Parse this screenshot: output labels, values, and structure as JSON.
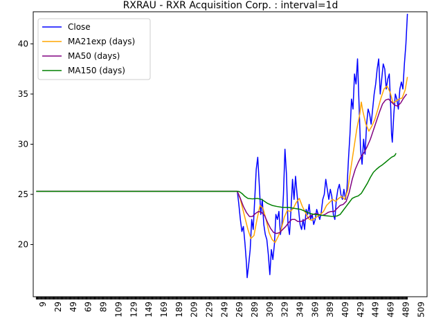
{
  "chart_data": {
    "type": "line",
    "title": "RXRAU - RXR Acquisition Corp. : interval=1d",
    "xlabel": "",
    "ylabel": "",
    "xlim": [
      -4,
      517
    ],
    "ylim": [
      14.8,
      43.2
    ],
    "legend_position": "top-left",
    "grid": false,
    "x_ticks": [
      9,
      29,
      49,
      69,
      89,
      109,
      129,
      149,
      169,
      189,
      209,
      229,
      249,
      269,
      289,
      309,
      329,
      349,
      369,
      389,
      409,
      429,
      449,
      469,
      489,
      509
    ],
    "y_ticks": [
      20,
      25,
      30,
      35,
      40
    ],
    "series": [
      {
        "name": "Close",
        "color": "#0000ff",
        "points": [
          [
            0,
            25.3
          ],
          [
            266,
            25.3
          ],
          [
            268,
            24.0
          ],
          [
            270,
            22.5
          ],
          [
            272,
            21.3
          ],
          [
            274,
            21.8
          ],
          [
            276,
            20.2
          ],
          [
            278,
            18.2
          ],
          [
            279,
            16.7
          ],
          [
            281,
            18.0
          ],
          [
            283,
            19.5
          ],
          [
            285,
            22.5
          ],
          [
            287,
            21.5
          ],
          [
            289,
            24.5
          ],
          [
            291,
            27.5
          ],
          [
            293,
            28.7
          ],
          [
            295,
            26.0
          ],
          [
            297,
            23.0
          ],
          [
            299,
            24.5
          ],
          [
            301,
            22.0
          ],
          [
            303,
            21.0
          ],
          [
            305,
            20.5
          ],
          [
            307,
            19.0
          ],
          [
            309,
            17.0
          ],
          [
            311,
            19.5
          ],
          [
            313,
            18.5
          ],
          [
            315,
            20.0
          ],
          [
            317,
            23.0
          ],
          [
            319,
            22.5
          ],
          [
            321,
            23.3
          ],
          [
            323,
            21.0
          ],
          [
            325,
            22.0
          ],
          [
            327,
            25.0
          ],
          [
            329,
            29.5
          ],
          [
            331,
            27.0
          ],
          [
            333,
            22.0
          ],
          [
            335,
            21.0
          ],
          [
            337,
            23.5
          ],
          [
            339,
            26.5
          ],
          [
            341,
            24.5
          ],
          [
            343,
            26.8
          ],
          [
            345,
            25.0
          ],
          [
            347,
            23.5
          ],
          [
            349,
            22.0
          ],
          [
            351,
            21.5
          ],
          [
            353,
            22.5
          ],
          [
            355,
            21.5
          ],
          [
            357,
            23.5
          ],
          [
            359,
            23.0
          ],
          [
            361,
            24.0
          ],
          [
            363,
            22.5
          ],
          [
            365,
            23.0
          ],
          [
            367,
            22.0
          ],
          [
            369,
            22.5
          ],
          [
            371,
            23.5
          ],
          [
            373,
            23.0
          ],
          [
            375,
            22.5
          ],
          [
            377,
            23.2
          ],
          [
            379,
            24.5
          ],
          [
            381,
            25.0
          ],
          [
            383,
            26.5
          ],
          [
            385,
            25.5
          ],
          [
            387,
            24.5
          ],
          [
            389,
            25.5
          ],
          [
            391,
            24.8
          ],
          [
            393,
            23.0
          ],
          [
            395,
            22.5
          ],
          [
            397,
            24.5
          ],
          [
            399,
            25.5
          ],
          [
            401,
            26.0
          ],
          [
            403,
            25.0
          ],
          [
            405,
            24.5
          ],
          [
            407,
            25.5
          ],
          [
            409,
            24.5
          ],
          [
            411,
            25.5
          ],
          [
            413,
            28.5
          ],
          [
            415,
            31.0
          ],
          [
            417,
            34.5
          ],
          [
            419,
            33.5
          ],
          [
            421,
            37.0
          ],
          [
            423,
            36.0
          ],
          [
            425,
            38.5
          ],
          [
            427,
            34.0
          ],
          [
            429,
            29.5
          ],
          [
            431,
            28.0
          ],
          [
            433,
            30.5
          ],
          [
            435,
            29.0
          ],
          [
            437,
            32.0
          ],
          [
            439,
            33.5
          ],
          [
            441,
            33.0
          ],
          [
            443,
            32.0
          ],
          [
            445,
            33.5
          ],
          [
            447,
            35.0
          ],
          [
            449,
            36.0
          ],
          [
            451,
            37.5
          ],
          [
            453,
            38.5
          ],
          [
            455,
            35.0
          ],
          [
            457,
            36.5
          ],
          [
            459,
            38.0
          ],
          [
            461,
            37.5
          ],
          [
            463,
            35.5
          ],
          [
            465,
            36.5
          ],
          [
            467,
            37.0
          ],
          [
            469,
            33.5
          ],
          [
            470,
            31.0
          ],
          [
            471,
            30.2
          ],
          [
            473,
            33.0
          ],
          [
            475,
            35.0
          ],
          [
            477,
            34.5
          ],
          [
            479,
            33.5
          ],
          [
            481,
            35.5
          ],
          [
            483,
            36.2
          ],
          [
            485,
            35.5
          ],
          [
            487,
            38.0
          ],
          [
            489,
            40.0
          ],
          [
            491,
            43.0
          ]
        ]
      },
      {
        "name": "MA21exp (days)",
        "color": "#ffa500",
        "points": [
          [
            0,
            25.3
          ],
          [
            266,
            25.3
          ],
          [
            270,
            24.5
          ],
          [
            275,
            23.0
          ],
          [
            280,
            21.5
          ],
          [
            284,
            20.6
          ],
          [
            288,
            20.9
          ],
          [
            292,
            22.5
          ],
          [
            296,
            23.9
          ],
          [
            300,
            23.6
          ],
          [
            304,
            22.5
          ],
          [
            308,
            21.2
          ],
          [
            312,
            20.5
          ],
          [
            316,
            20.2
          ],
          [
            320,
            20.8
          ],
          [
            324,
            21.5
          ],
          [
            328,
            22.7
          ],
          [
            332,
            23.4
          ],
          [
            336,
            23.3
          ],
          [
            340,
            23.6
          ],
          [
            344,
            24.2
          ],
          [
            348,
            24.6
          ],
          [
            352,
            23.8
          ],
          [
            356,
            23.2
          ],
          [
            360,
            22.6
          ],
          [
            364,
            22.4
          ],
          [
            368,
            22.6
          ],
          [
            372,
            22.8
          ],
          [
            376,
            23.0
          ],
          [
            380,
            23.3
          ],
          [
            384,
            23.9
          ],
          [
            388,
            24.2
          ],
          [
            392,
            24.5
          ],
          [
            396,
            24.3
          ],
          [
            400,
            24.6
          ],
          [
            404,
            24.8
          ],
          [
            408,
            24.5
          ],
          [
            412,
            25.4
          ],
          [
            416,
            27.5
          ],
          [
            420,
            29.5
          ],
          [
            424,
            31.5
          ],
          [
            428,
            33.0
          ],
          [
            430,
            34.2
          ],
          [
            432,
            33.3
          ],
          [
            436,
            32.0
          ],
          [
            440,
            31.3
          ],
          [
            444,
            31.8
          ],
          [
            448,
            32.5
          ],
          [
            452,
            33.5
          ],
          [
            456,
            34.6
          ],
          [
            460,
            35.5
          ],
          [
            464,
            35.8
          ],
          [
            468,
            35.2
          ],
          [
            472,
            34.1
          ],
          [
            476,
            34.3
          ],
          [
            480,
            34.5
          ],
          [
            484,
            34.6
          ],
          [
            488,
            35.4
          ],
          [
            491,
            36.7
          ]
        ]
      },
      {
        "name": "MA50 (days)",
        "color": "#800080",
        "points": [
          [
            0,
            25.3
          ],
          [
            266,
            25.3
          ],
          [
            270,
            24.6
          ],
          [
            274,
            23.8
          ],
          [
            278,
            23.2
          ],
          [
            282,
            22.8
          ],
          [
            286,
            22.8
          ],
          [
            290,
            23.1
          ],
          [
            294,
            23.3
          ],
          [
            298,
            23.2
          ],
          [
            302,
            22.9
          ],
          [
            306,
            22.2
          ],
          [
            310,
            21.6
          ],
          [
            314,
            21.2
          ],
          [
            318,
            21.1
          ],
          [
            322,
            21.2
          ],
          [
            326,
            21.5
          ],
          [
            330,
            21.8
          ],
          [
            334,
            22.2
          ],
          [
            338,
            22.5
          ],
          [
            342,
            22.5
          ],
          [
            346,
            22.3
          ],
          [
            350,
            22.3
          ],
          [
            354,
            22.4
          ],
          [
            358,
            22.6
          ],
          [
            362,
            22.8
          ],
          [
            366,
            23.0
          ],
          [
            370,
            23.1
          ],
          [
            374,
            23.0
          ],
          [
            378,
            22.9
          ],
          [
            382,
            23.0
          ],
          [
            386,
            23.2
          ],
          [
            390,
            23.3
          ],
          [
            394,
            23.3
          ],
          [
            398,
            23.6
          ],
          [
            402,
            23.9
          ],
          [
            406,
            24.0
          ],
          [
            410,
            24.3
          ],
          [
            414,
            25.2
          ],
          [
            418,
            26.5
          ],
          [
            422,
            27.5
          ],
          [
            426,
            28.2
          ],
          [
            430,
            28.8
          ],
          [
            434,
            29.2
          ],
          [
            438,
            29.8
          ],
          [
            442,
            30.5
          ],
          [
            446,
            31.4
          ],
          [
            450,
            32.3
          ],
          [
            454,
            33.2
          ],
          [
            458,
            34.0
          ],
          [
            462,
            34.4
          ],
          [
            466,
            34.5
          ],
          [
            470,
            34.2
          ],
          [
            474,
            33.9
          ],
          [
            478,
            33.8
          ],
          [
            482,
            34.1
          ],
          [
            486,
            34.6
          ],
          [
            490,
            35.0
          ]
        ]
      },
      {
        "name": "MA150 (days)",
        "color": "#008000",
        "points": [
          [
            0,
            25.3
          ],
          [
            268,
            25.3
          ],
          [
            272,
            25.1
          ],
          [
            276,
            24.8
          ],
          [
            280,
            24.6
          ],
          [
            286,
            24.55
          ],
          [
            292,
            24.6
          ],
          [
            298,
            24.5
          ],
          [
            302,
            24.3
          ],
          [
            306,
            24.1
          ],
          [
            312,
            23.9
          ],
          [
            318,
            23.8
          ],
          [
            326,
            23.7
          ],
          [
            334,
            23.7
          ],
          [
            342,
            23.6
          ],
          [
            350,
            23.5
          ],
          [
            356,
            23.3
          ],
          [
            362,
            23.1
          ],
          [
            368,
            23.0
          ],
          [
            374,
            22.95
          ],
          [
            380,
            22.9
          ],
          [
            386,
            22.85
          ],
          [
            392,
            22.8
          ],
          [
            398,
            22.85
          ],
          [
            402,
            23.0
          ],
          [
            406,
            23.4
          ],
          [
            410,
            23.8
          ],
          [
            414,
            24.2
          ],
          [
            418,
            24.6
          ],
          [
            422,
            24.75
          ],
          [
            426,
            24.85
          ],
          [
            430,
            25.1
          ],
          [
            434,
            25.6
          ],
          [
            438,
            26.1
          ],
          [
            442,
            26.7
          ],
          [
            446,
            27.2
          ],
          [
            450,
            27.5
          ],
          [
            454,
            27.75
          ],
          [
            458,
            27.95
          ],
          [
            462,
            28.2
          ],
          [
            466,
            28.45
          ],
          [
            470,
            28.7
          ],
          [
            474,
            28.85
          ],
          [
            476,
            29.1
          ]
        ]
      }
    ]
  }
}
